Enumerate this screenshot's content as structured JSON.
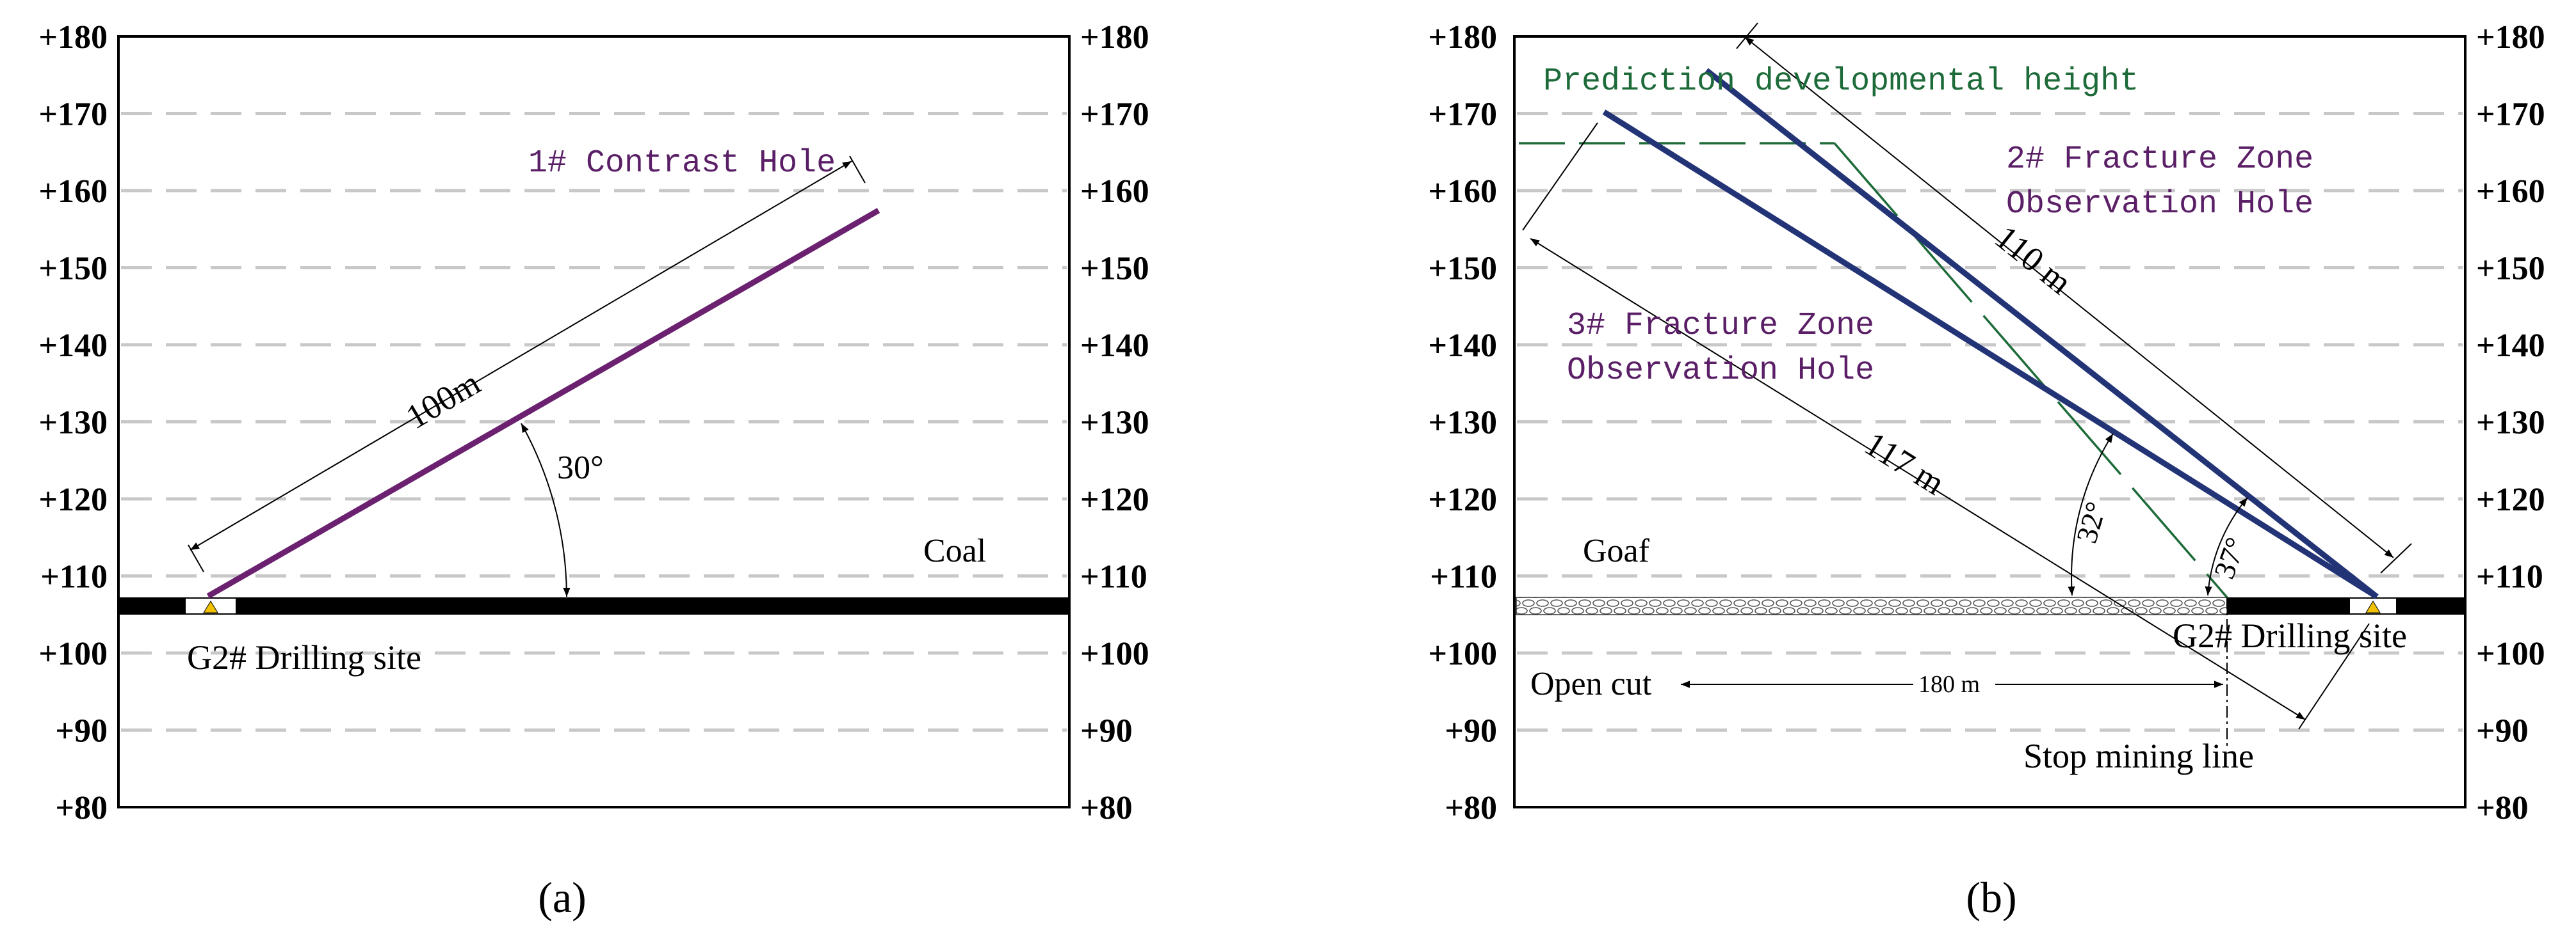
{
  "y_axis_labels": [
    "+180",
    "+170",
    "+160",
    "+150",
    "+140",
    "+130",
    "+120",
    "+110",
    "+100",
    "+90",
    "+80"
  ],
  "panel_a": {
    "caption": "(a)",
    "hole_label": "1# Contrast Hole",
    "length_label": "100m",
    "angle_label": "30°",
    "coal_label": "Coal",
    "site_label": "G2# Drilling site",
    "colors": {
      "hole": "#6b2170",
      "text": "#5a1f66"
    }
  },
  "panel_b": {
    "caption": "(b)",
    "prediction_label": "Prediction developmental height",
    "hole2_label_line1": "2# Fracture Zone",
    "hole2_label_line2": "Observation Hole",
    "hole3_label_line1": "3# Fracture  Zone",
    "hole3_label_line2": "Observation Hole",
    "length2_label": "110 m",
    "length3_label": "117 m",
    "angle32_label": "32°",
    "angle37_label": "37°",
    "goaf_label": "Goaf",
    "open_cut_label": "Open cut",
    "distance_label": "180 m",
    "site_label": "G2# Drilling site",
    "stop_line_label": "Stop mining line",
    "colors": {
      "holes": "#233476",
      "prediction": "#1e6b3a",
      "text": "#5a1f66"
    }
  }
}
